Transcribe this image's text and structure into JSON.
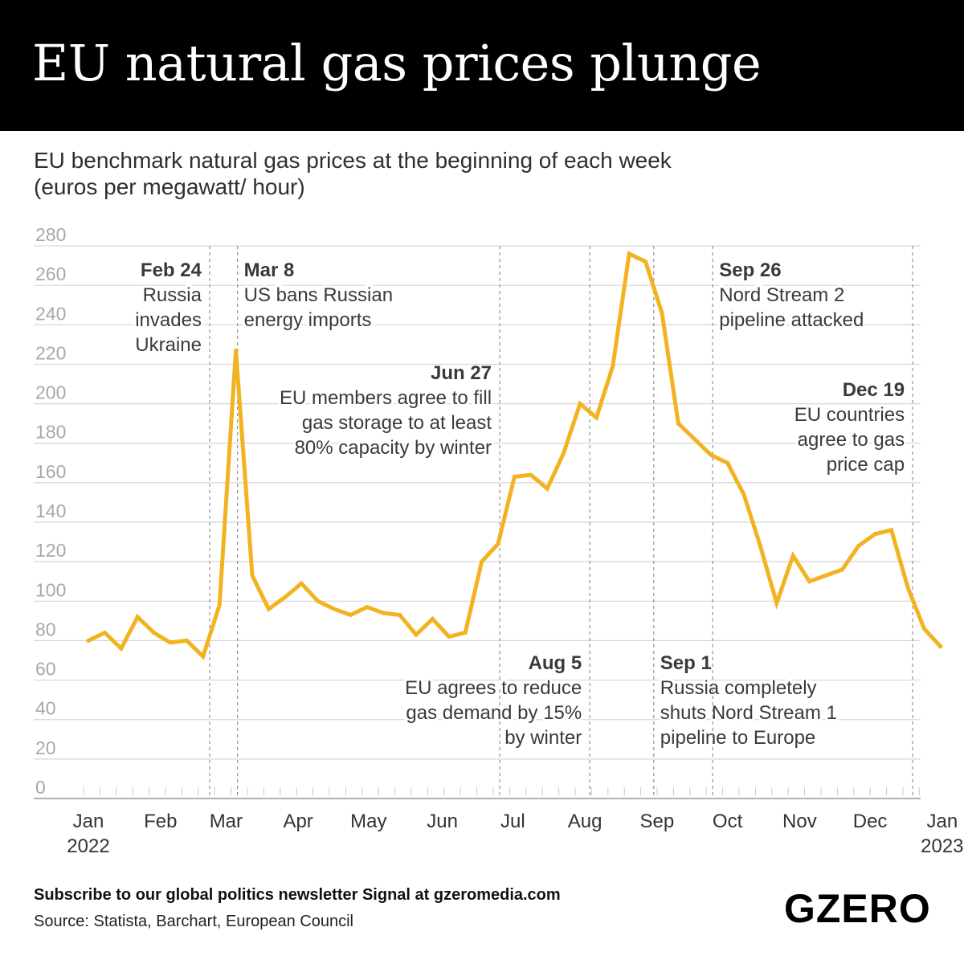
{
  "header": {
    "title": "EU natural gas prices plunge"
  },
  "subtitle": {
    "line1": "EU benchmark natural gas prices at the beginning of each week",
    "line2": "(euros per megawatt/ hour)"
  },
  "colors": {
    "line": "#f2b322",
    "grid": "#d6d6d6",
    "axis_text": "#a8a8a8",
    "annotation": "#3a3a3a",
    "banner": "#000000"
  },
  "chart_data": {
    "type": "line",
    "title": "EU natural gas prices plunge",
    "ylabel": "euros per megawatt/ hour",
    "ylim": [
      0,
      280
    ],
    "yticks": [
      0,
      20,
      40,
      60,
      80,
      100,
      120,
      140,
      160,
      180,
      200,
      220,
      240,
      260,
      280
    ],
    "grid": true,
    "x_unit": "week index from first week of Jan 2022",
    "month_ticks": [
      {
        "week": 0,
        "label": "Jan",
        "sublabel": "2022"
      },
      {
        "week": 4.4,
        "label": "Feb",
        "sublabel": ""
      },
      {
        "week": 8.4,
        "label": "Mar",
        "sublabel": ""
      },
      {
        "week": 12.8,
        "label": "Apr",
        "sublabel": ""
      },
      {
        "week": 17.1,
        "label": "May",
        "sublabel": ""
      },
      {
        "week": 21.6,
        "label": "Jun",
        "sublabel": ""
      },
      {
        "week": 25.9,
        "label": "Jul",
        "sublabel": ""
      },
      {
        "week": 30.3,
        "label": "Aug",
        "sublabel": ""
      },
      {
        "week": 34.7,
        "label": "Sep",
        "sublabel": ""
      },
      {
        "week": 39.0,
        "label": "Oct",
        "sublabel": ""
      },
      {
        "week": 43.4,
        "label": "Nov",
        "sublabel": ""
      },
      {
        "week": 47.7,
        "label": "Dec",
        "sublabel": ""
      },
      {
        "week": 52.1,
        "label": "Jan",
        "sublabel": "2023"
      }
    ],
    "series": [
      {
        "name": "EU benchmark natural gas price",
        "values": [
          80,
          84,
          76,
          92,
          84,
          79,
          80,
          72,
          98,
          227,
          113,
          96,
          102,
          109,
          100,
          96,
          93,
          97,
          94,
          93,
          83,
          91,
          82,
          84,
          120,
          129,
          163,
          164,
          157,
          175,
          200,
          193,
          219,
          276,
          272,
          246,
          190,
          182,
          174,
          170,
          154,
          128,
          99,
          123,
          110,
          113,
          116,
          128,
          134,
          136,
          107,
          86,
          77
        ]
      }
    ],
    "events": [
      {
        "week": 7.4,
        "date": "Feb 24",
        "lines": [
          "Russia",
          "invades",
          "Ukraine"
        ],
        "align": "right"
      },
      {
        "week": 9.1,
        "date": "Mar 8",
        "lines": [
          "US bans Russian",
          "energy imports"
        ],
        "align": "left"
      },
      {
        "week": 25.1,
        "date": "Jun 27",
        "lines": [
          "EU members agree to fill",
          "gas storage to at least",
          "80% capacity by winter"
        ],
        "align": "right"
      },
      {
        "week": 30.6,
        "date": "Aug 5",
        "lines": [
          "EU agrees to reduce",
          "gas demand by 15%",
          "by winter"
        ],
        "align": "right"
      },
      {
        "week": 34.5,
        "date": "Sep 1",
        "lines": [
          "Russia completely",
          "shuts Nord Stream 1",
          "pipeline to Europe"
        ],
        "align": "left"
      },
      {
        "week": 38.1,
        "date": "Sep 26",
        "lines": [
          "Nord Stream 2",
          "pipeline attacked"
        ],
        "align": "left"
      },
      {
        "week": 50.3,
        "date": "Dec 19",
        "lines": [
          "EU countries",
          "agree to gas",
          "price cap"
        ],
        "align": "right"
      }
    ]
  },
  "footer": {
    "signal": "Subscribe to our global politics newsletter Signal at gzeromedia.com",
    "source": "Source: Statista, Barchart, European Council",
    "logo": "GZERO"
  }
}
